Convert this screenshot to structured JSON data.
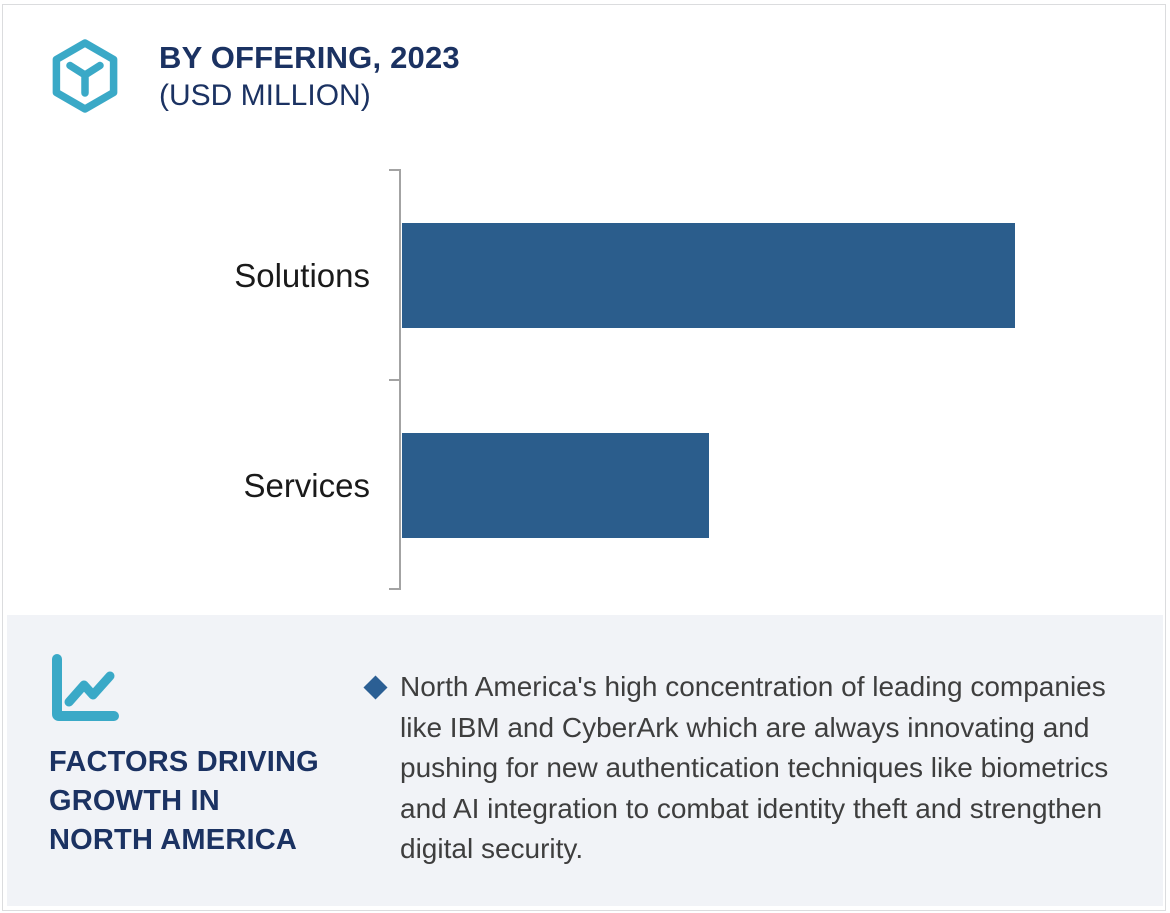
{
  "header": {
    "title_line1": "BY OFFERING, 2023",
    "title_line2": "(USD MILLION)",
    "logo_icon": "hexagon-y-icon",
    "accent_color": "#3AA9C7",
    "title_color": "#1B3262"
  },
  "chart_data": {
    "type": "bar",
    "orientation": "horizontal",
    "title": "BY OFFERING, 2023 (USD MILLION)",
    "categories": [
      "Solutions",
      "Services"
    ],
    "values_relative_pct": [
      100,
      50
    ],
    "value_labels_shown": false,
    "axis_labels_shown": false,
    "gridlines": false,
    "bar_color": "#2B5D8C",
    "axis_color": "#A3A3A3",
    "note": "No numeric axis or data labels visible; Solutions bar is about twice the length of Services bar"
  },
  "factors_panel": {
    "icon": "line-chart-icon",
    "heading": "FACTORS DRIVING\nGROWTH IN\nNORTH AMERICA",
    "bullet_icon": "diamond-bullet",
    "bullet_text": "North America's high concentration of leading companies like IBM and CyberArk which are always innovating and pushing for new authentication techniques like biometrics and AI integration to combat identity theft and strengthen digital security.",
    "panel_bg": "#F1F3F7",
    "text_color": "#3E3E3E"
  }
}
